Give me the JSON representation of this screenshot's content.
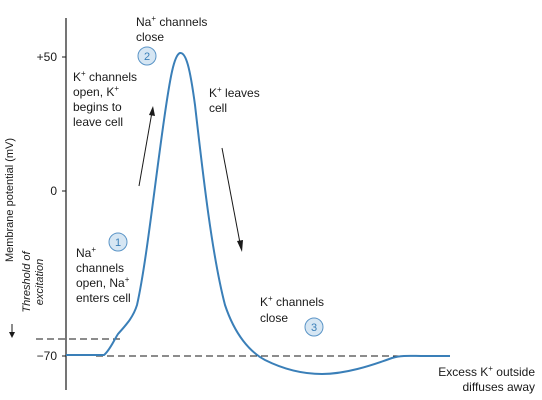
{
  "axis": {
    "ylabel": "Membrane potential (mV)",
    "ticks": [
      "+50",
      "0",
      "−70"
    ]
  },
  "threshold": {
    "line1": "Threshold of",
    "line2": "excitation"
  },
  "annotations": {
    "na_close_1": "Na",
    "na_close_sup": "+",
    "na_close_2": " channels",
    "na_close_3": "close",
    "k_open_1": "K",
    "k_open_sup1": "+",
    "k_open_2": " channels",
    "k_open_3": "open, K",
    "k_open_sup2": "+",
    "k_open_4": "begins to",
    "k_open_5": "leave cell",
    "k_leave_1": "K",
    "k_leave_sup": "+",
    "k_leave_2": " leaves",
    "k_leave_3": "cell",
    "na_open_1": "Na",
    "na_open_sup1": "+",
    "na_open_2": "channels",
    "na_open_3": "open, Na",
    "na_open_sup2": "+",
    "na_open_4": "enters cell",
    "k_close_1": "K",
    "k_close_sup": "+",
    "k_close_2": " channels",
    "k_close_3": "close",
    "excess_1": "Excess K",
    "excess_sup": "+",
    "excess_2": " outside",
    "excess_3": "diffuses away"
  },
  "steps": [
    "1",
    "2",
    "3"
  ],
  "colors": {
    "curve": "#3a7fb8",
    "badge_fill": "#d6e6f3",
    "badge_stroke": "#5b95c7",
    "axis": "#1a1a1a"
  }
}
